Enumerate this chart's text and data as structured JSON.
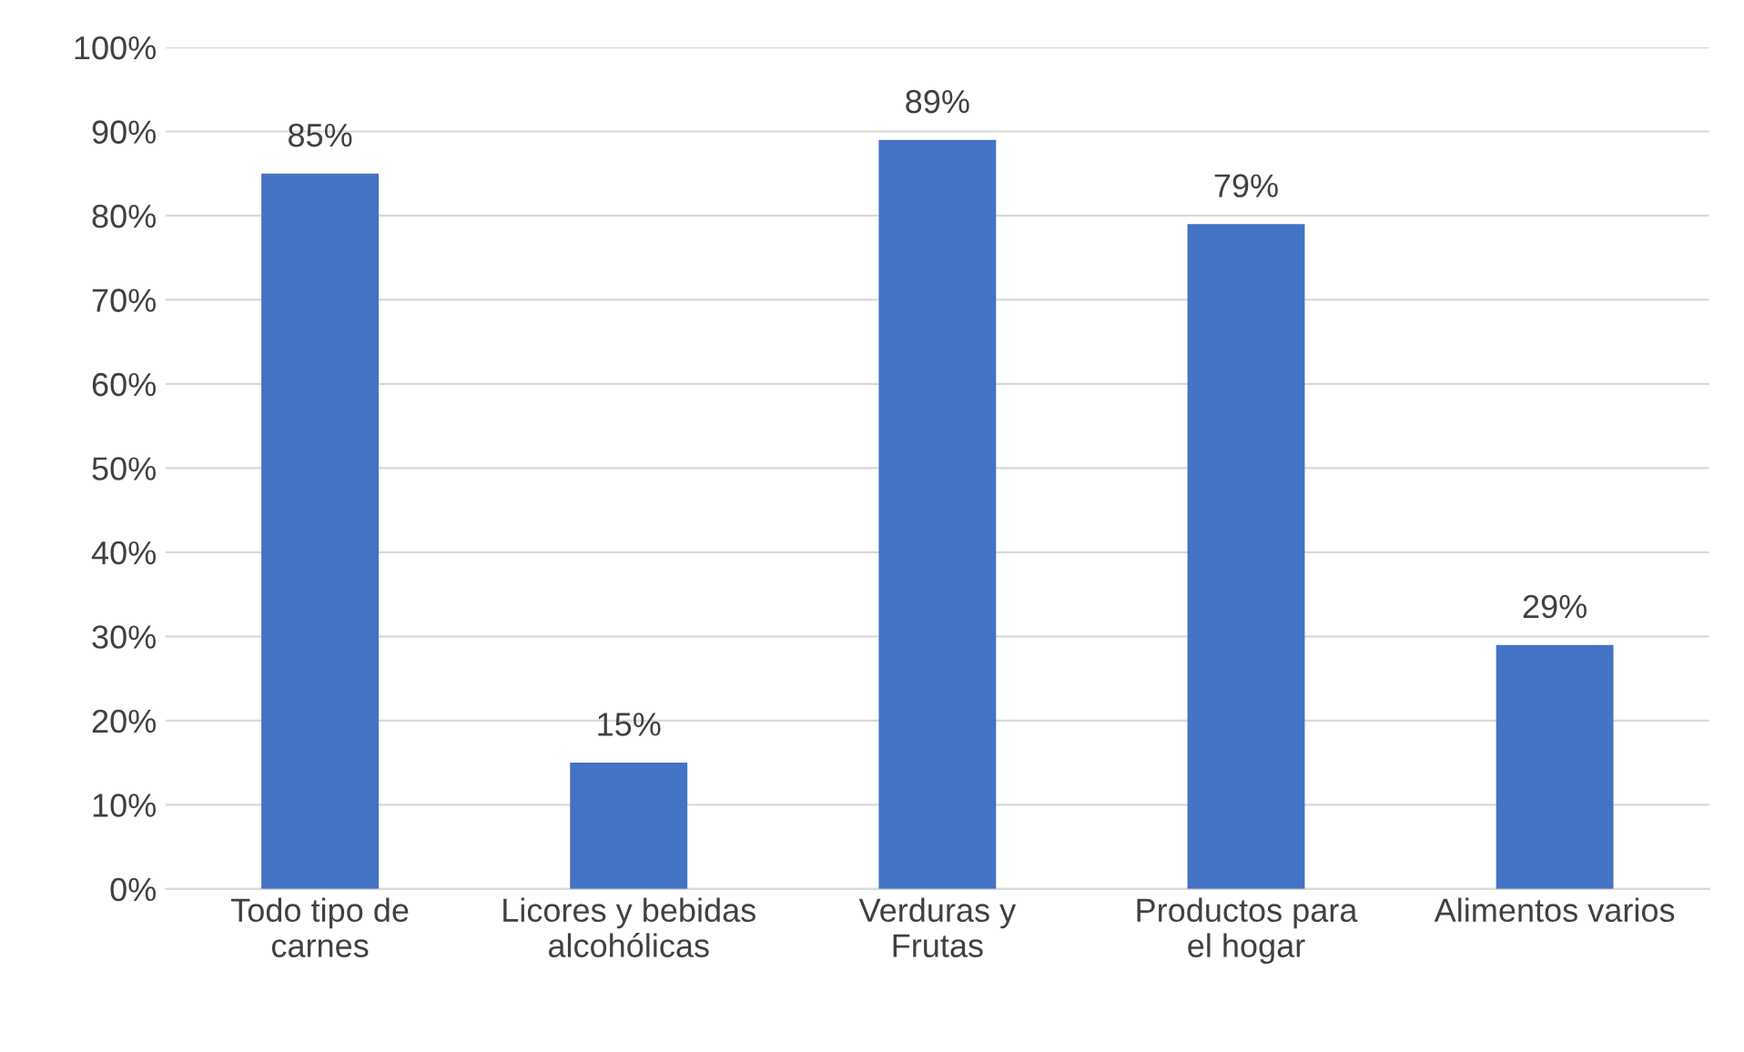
{
  "chart_data": {
    "type": "bar",
    "categories": [
      "Todo tipo de\ncarnes",
      "Licores y bebidas\nalcohólicas",
      "Verduras y\nFrutas",
      "Productos para\nel hogar",
      "Alimentos varios"
    ],
    "values": [
      85,
      15,
      89,
      79,
      29
    ],
    "value_labels": [
      "85%",
      "15%",
      "89%",
      "79%",
      "29%"
    ],
    "color": "#4472c4",
    "ylim": [
      0,
      100
    ],
    "yticks": [
      {
        "value": 0,
        "label": "0%"
      },
      {
        "value": 10,
        "label": "10%"
      },
      {
        "value": 20,
        "label": "20%"
      },
      {
        "value": 30,
        "label": "30%"
      },
      {
        "value": 40,
        "label": "40%"
      },
      {
        "value": 50,
        "label": "50%"
      },
      {
        "value": 60,
        "label": "60%"
      },
      {
        "value": 70,
        "label": "70%"
      },
      {
        "value": 80,
        "label": "80%"
      },
      {
        "value": 90,
        "label": "90%"
      },
      {
        "value": 100,
        "label": "100%"
      }
    ],
    "grid": "y",
    "legend": false
  }
}
